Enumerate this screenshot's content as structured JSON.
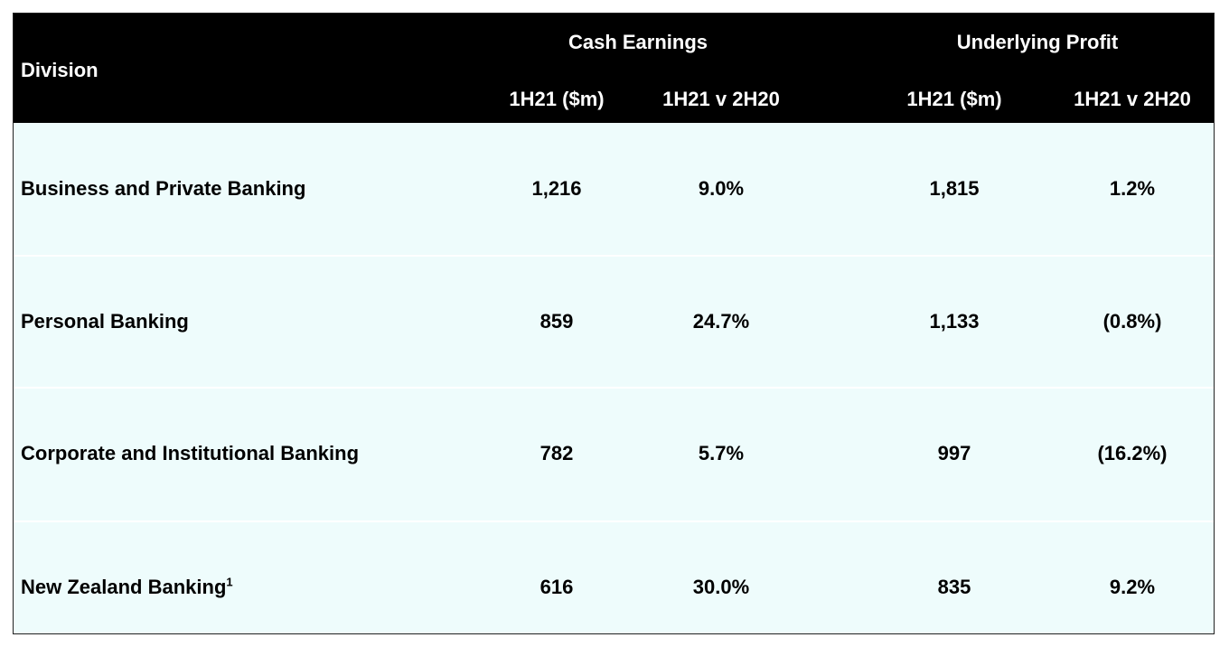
{
  "table": {
    "header": {
      "division": "Division",
      "group_cash": "Cash Earnings",
      "group_profit": "Underlying Profit",
      "cash_1h21": "1H21 ($m)",
      "cash_change": "1H21 v 2H20",
      "profit_1h21": "1H21 ($m)",
      "profit_change": "1H21 v 2H20"
    },
    "rows": [
      {
        "division": "Business and Private Banking",
        "sup": "",
        "cash": "1,216",
        "cash_change": "9.0%",
        "profit": "1,815",
        "profit_change": "1.2%"
      },
      {
        "division": "Personal Banking",
        "sup": "",
        "cash": "859",
        "cash_change": "24.7%",
        "profit": "1,133",
        "profit_change": "(0.8%)"
      },
      {
        "division": "Corporate and Institutional Banking",
        "sup": "",
        "cash": "782",
        "cash_change": "5.7%",
        "profit": "997",
        "profit_change": "(16.2%)"
      },
      {
        "division": "New Zealand Banking",
        "sup": "1",
        "cash": "616",
        "cash_change": "30.0%",
        "profit": "835",
        "profit_change": "9.2%"
      }
    ]
  },
  "colors": {
    "header_bg": "#000000",
    "header_text": "#ffffff",
    "body_bg": "#eefcfc",
    "body_text": "#000000"
  }
}
